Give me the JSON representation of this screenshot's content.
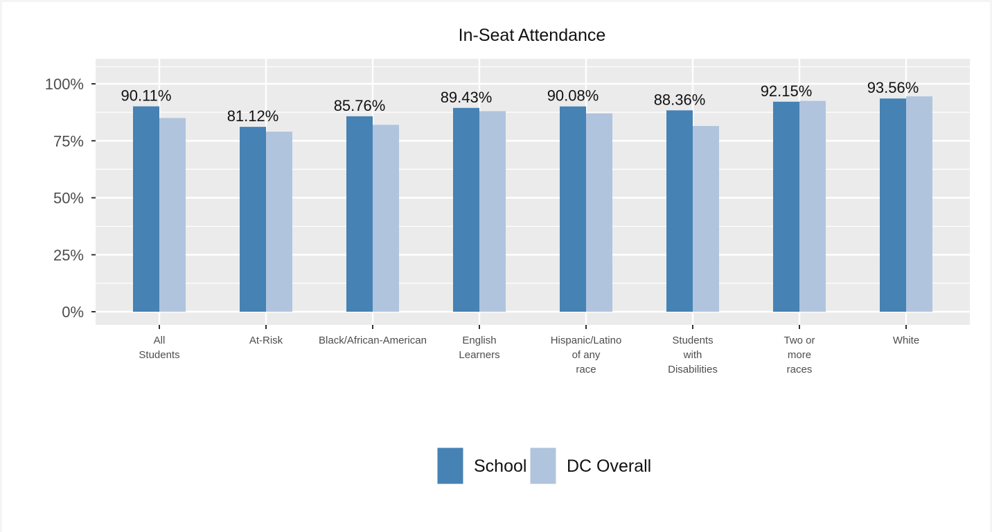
{
  "chart_data": {
    "type": "bar",
    "title": "In-Seat Attendance",
    "xlabel": "",
    "ylabel": "",
    "ylim": [
      0,
      1.1
    ],
    "yticks": [
      0,
      0.25,
      0.5,
      0.75,
      1.0
    ],
    "ytick_labels": [
      "0%",
      "25%",
      "50%",
      "75%",
      "100%"
    ],
    "grid": true,
    "legend_position": "bottom",
    "categories": [
      [
        "All",
        "Students"
      ],
      [
        "At-Risk"
      ],
      [
        "Black/African-American"
      ],
      [
        "English",
        "Learners"
      ],
      [
        "Hispanic/Latino",
        "of any",
        "race"
      ],
      [
        "Students",
        "with",
        "Disabilities"
      ],
      [
        "Two or",
        "more",
        "races"
      ],
      [
        "White"
      ]
    ],
    "series": [
      {
        "name": "School",
        "color": "#4682b4",
        "values": [
          0.9011,
          0.8112,
          0.8576,
          0.8943,
          0.9008,
          0.8836,
          0.9215,
          0.9356
        ],
        "labels": [
          "90.11%",
          "81.12%",
          "85.76%",
          "89.43%",
          "90.08%",
          "88.36%",
          "92.15%",
          "93.56%"
        ]
      },
      {
        "name": "DC Overall",
        "color": "#b0c4de",
        "values": [
          0.85,
          0.79,
          0.82,
          0.88,
          0.87,
          0.815,
          0.925,
          0.945
        ]
      }
    ]
  }
}
